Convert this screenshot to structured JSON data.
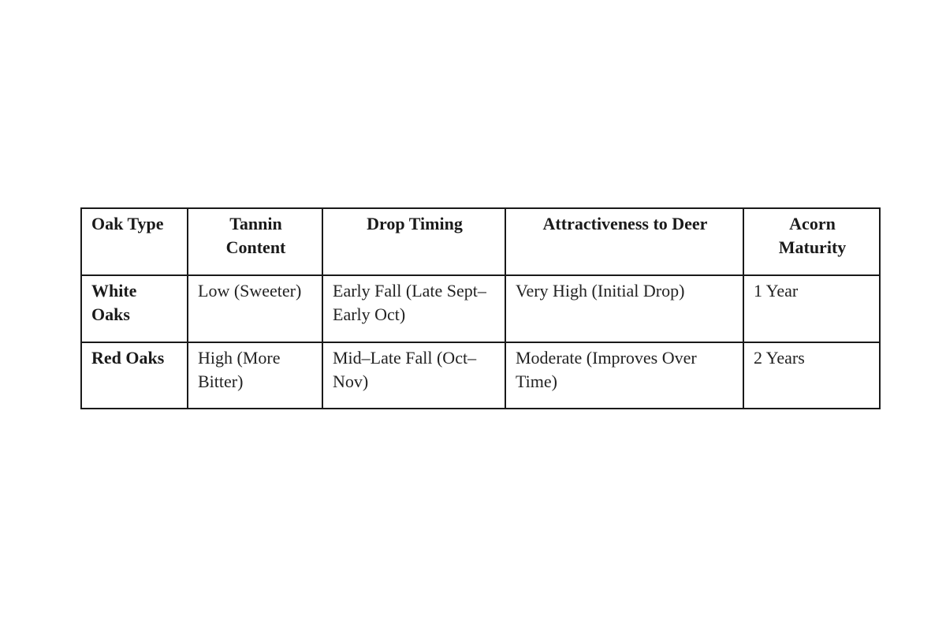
{
  "table": {
    "headers": [
      "Oak Type",
      "Tannin Content",
      "Drop Timing",
      "Attractiveness to Deer",
      "Acorn Maturity"
    ],
    "rows": [
      [
        "White Oaks",
        "Low (Sweeter)",
        "Early Fall (Late Sept–Early Oct)",
        "Very High (Initial Drop)",
        "1 Year"
      ],
      [
        "Red Oaks",
        "High (More Bitter)",
        "Mid–Late Fall (Oct–Nov)",
        "Moderate (Improves Over Time)",
        "2 Years"
      ]
    ]
  }
}
